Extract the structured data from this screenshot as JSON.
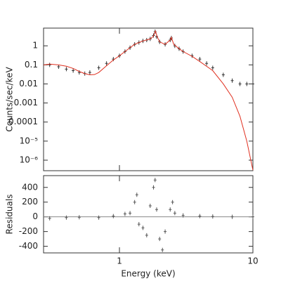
{
  "chart_data": [
    {
      "type": "line",
      "xlog": true,
      "ylog": true,
      "ylabel": "Counts/sec/keV",
      "xlim": [
        0.27,
        10
      ],
      "xticks": [
        1,
        10
      ],
      "ylim": [
        2.8e-07,
        8.5
      ],
      "yticks": [
        1,
        0.1,
        0.01,
        0.001,
        0.0001,
        {
          "value": 1e-05,
          "label": "10⁻⁵"
        },
        {
          "value": 1e-06,
          "label": "10⁻⁶"
        }
      ],
      "series": [
        {
          "mode": "points",
          "color": "#333333",
          "x": [
            0.3,
            0.35,
            0.4,
            0.45,
            0.5,
            0.55,
            0.6,
            0.7,
            0.8,
            0.9,
            1.0,
            1.1,
            1.2,
            1.3,
            1.4,
            1.5,
            1.6,
            1.7,
            1.8,
            1.85,
            1.9,
            2.0,
            2.2,
            2.4,
            2.45,
            2.6,
            2.8,
            3.0,
            3.5,
            4,
            4.5,
            5,
            6,
            7,
            8,
            9,
            10
          ],
          "values": [
            0.1,
            0.08,
            0.06,
            0.05,
            0.04,
            0.035,
            0.04,
            0.07,
            0.12,
            0.2,
            0.3,
            0.5,
            0.8,
            1.2,
            1.5,
            1.8,
            2.0,
            2.3,
            3.5,
            5.5,
            3.0,
            1.6,
            1.2,
            2.0,
            2.6,
            1.0,
            0.7,
            0.5,
            0.3,
            0.2,
            0.12,
            0.07,
            0.03,
            0.015,
            0.01,
            0.01,
            0.01
          ]
        },
        {
          "mode": "line",
          "color": "#e03020",
          "x": [
            0.27,
            0.3,
            0.35,
            0.4,
            0.45,
            0.5,
            0.55,
            0.6,
            0.65,
            0.7,
            0.8,
            0.9,
            1.0,
            1.1,
            1.2,
            1.3,
            1.5,
            1.7,
            1.8,
            1.86,
            1.92,
            2.0,
            2.2,
            2.4,
            2.45,
            2.55,
            2.8,
            3.0,
            3.5,
            4,
            5,
            6,
            7,
            8,
            9,
            10
          ],
          "values": [
            0.1,
            0.11,
            0.1,
            0.085,
            0.065,
            0.045,
            0.035,
            0.03,
            0.031,
            0.04,
            0.09,
            0.18,
            0.3,
            0.5,
            0.8,
            1.2,
            1.8,
            2.3,
            3.2,
            6.0,
            3.0,
            1.6,
            1.2,
            2.0,
            2.8,
            1.2,
            0.7,
            0.5,
            0.28,
            0.15,
            0.05,
            0.01,
            0.002,
            0.0002,
            1e-05,
            3e-07
          ]
        }
      ]
    },
    {
      "type": "scatter",
      "xlog": true,
      "ylog": false,
      "ylabel": "Residuals",
      "xlabel": "Energy (keV)",
      "xlim": [
        0.27,
        10
      ],
      "xticks": [
        1,
        10
      ],
      "ylim": [
        -490,
        560
      ],
      "yticks": [
        400,
        200,
        0,
        -200,
        -400
      ],
      "color": "#555555",
      "x": [
        0.3,
        0.4,
        0.5,
        0.7,
        0.9,
        1.1,
        1.2,
        1.3,
        1.35,
        1.4,
        1.5,
        1.6,
        1.7,
        1.8,
        1.85,
        1.9,
        2.0,
        2.1,
        2.2,
        2.4,
        2.5,
        2.6,
        3,
        4,
        5,
        7,
        10
      ],
      "values": [
        -20,
        -10,
        -5,
        -10,
        10,
        40,
        50,
        200,
        300,
        -100,
        -150,
        -250,
        150,
        400,
        500,
        100,
        -300,
        -450,
        -200,
        100,
        200,
        50,
        20,
        10,
        5,
        0,
        0
      ]
    }
  ]
}
